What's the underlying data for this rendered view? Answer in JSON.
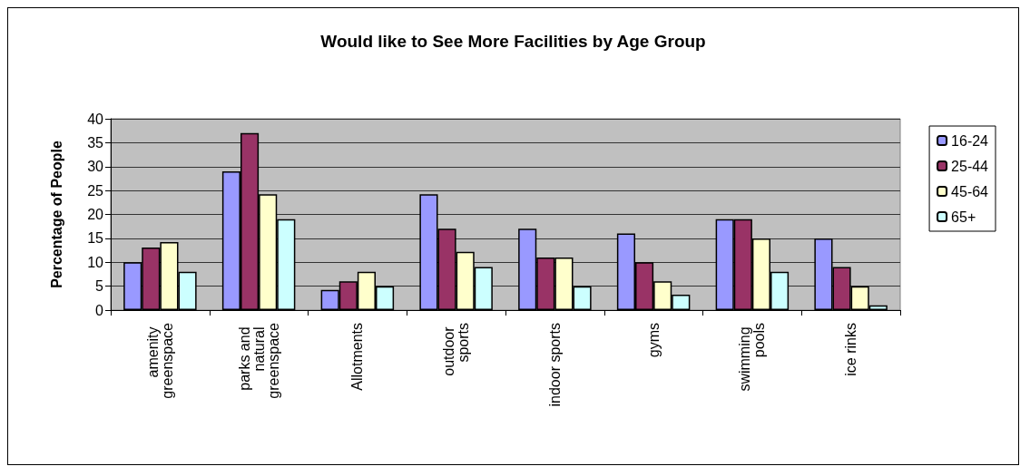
{
  "chart_data": {
    "type": "bar",
    "title": "Would like to See More Facilities by Age Group",
    "ylabel": "Percentage of People",
    "categories": [
      "amenity greenspace",
      "parks and natural greenspace",
      "Allotments",
      "outdoor sports",
      "indoor sports",
      "gyms",
      "swimming pools",
      "ice rinks"
    ],
    "series": [
      {
        "name": "16-24",
        "color": "#9999ff",
        "values": [
          10,
          29,
          4.2,
          24.2,
          17,
          16,
          19,
          15
        ]
      },
      {
        "name": "25-44",
        "color": "#993366",
        "values": [
          13.1,
          37,
          6,
          17,
          11,
          10,
          19,
          9
        ]
      },
      {
        "name": "45-64",
        "color": "#ffffcc",
        "values": [
          14.2,
          24.2,
          8,
          12.2,
          11,
          6,
          15,
          5
        ]
      },
      {
        "name": "65+",
        "color": "#ccffff",
        "values": [
          8,
          19,
          5,
          9,
          5,
          3.2,
          8,
          1
        ]
      }
    ],
    "ylim": [
      0,
      40
    ],
    "yticks": [
      0,
      5,
      10,
      15,
      20,
      25,
      30,
      35,
      40
    ],
    "grid": "y",
    "legend": "right"
  }
}
